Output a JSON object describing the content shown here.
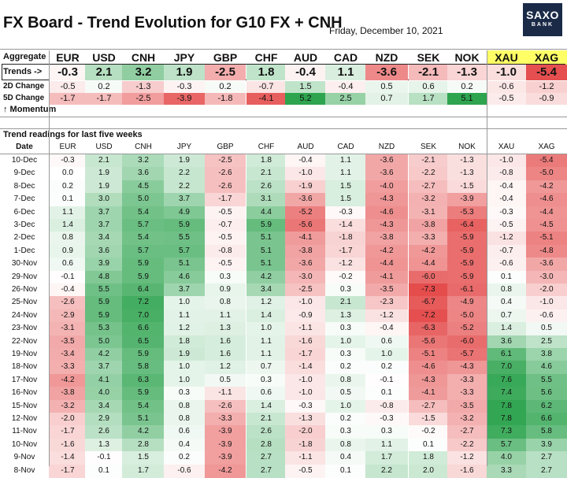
{
  "header": {
    "title": "FX Board - Trend Evolution for G10 FX + CNH",
    "date": "Friday, December 10, 2021",
    "logo_line1": "SAXO",
    "logo_line2": "BANK"
  },
  "labels": {
    "aggregate": "Aggregate",
    "trends": "Trends ->",
    "change2d": "2D Change",
    "change5d": "5D Change",
    "momentum": "↑ Momentum",
    "readings": "Trend readings for last five weeks",
    "date_col": "Date"
  },
  "colors": {
    "positive": "#2ea44f",
    "negative": "#e23b3b",
    "commodity_header": "#ffff66",
    "logo_bg": "#1a2a47"
  },
  "chart_data": {
    "type": "heatmap",
    "currencies": [
      "EUR",
      "USD",
      "CNH",
      "JPY",
      "GBP",
      "CHF",
      "AUD",
      "CAD",
      "NZD",
      "SEK",
      "NOK",
      "XAU",
      "XAG"
    ],
    "aggregate": {
      "trends": [
        "-0.3",
        "2.1",
        "3.2",
        "1.9",
        "-2.5",
        "1.8",
        "-0.4",
        "1.1",
        "-3.6",
        "-2.1",
        "-1.3",
        "-1.0",
        "-5.4"
      ],
      "change_2d": [
        "-0.5",
        "0.2",
        "-1.3",
        "-0.3",
        "0.2",
        "-0.7",
        "1.5",
        "-0.4",
        "0.5",
        "0.6",
        "0.2",
        "-0.6",
        "-1.2"
      ],
      "change_5d": [
        "-1.7",
        "-1.7",
        "-2.5",
        "-3.9",
        "-1.8",
        "-4.1",
        "5.2",
        "2.5",
        "0.7",
        "1.7",
        "5.1",
        "-0.5",
        "-0.9"
      ]
    },
    "dates": [
      "10-Dec",
      "9-Dec",
      "8-Dec",
      "7-Dec",
      "6-Dec",
      "3-Dec",
      "2-Dec",
      "1-Dec",
      "30-Nov",
      "29-Nov",
      "26-Nov",
      "25-Nov",
      "24-Nov",
      "23-Nov",
      "22-Nov",
      "19-Nov",
      "18-Nov",
      "17-Nov",
      "16-Nov",
      "15-Nov",
      "12-Nov",
      "11-Nov",
      "10-Nov",
      "9-Nov",
      "8-Nov"
    ],
    "readings": [
      [
        "-0.3",
        "2.1",
        "3.2",
        "1.9",
        "-2.5",
        "1.8",
        "-0.4",
        "1.1",
        "-3.6",
        "-2.1",
        "-1.3",
        "-1.0",
        "-5.4"
      ],
      [
        "0.0",
        "1.9",
        "3.6",
        "2.2",
        "-2.6",
        "2.1",
        "-1.0",
        "1.1",
        "-3.6",
        "-2.2",
        "-1.3",
        "-0.8",
        "-5.0"
      ],
      [
        "0.2",
        "1.9",
        "4.5",
        "2.2",
        "-2.6",
        "2.6",
        "-1.9",
        "1.5",
        "-4.0",
        "-2.7",
        "-1.5",
        "-0.4",
        "-4.2"
      ],
      [
        "0.1",
        "3.0",
        "5.0",
        "3.7",
        "-1.7",
        "3.1",
        "-3.6",
        "1.5",
        "-4.3",
        "-3.2",
        "-3.9",
        "-0.4",
        "-4.6"
      ],
      [
        "1.1",
        "3.7",
        "5.4",
        "4.9",
        "-0.5",
        "4.4",
        "-5.2",
        "-0.3",
        "-4.6",
        "-3.1",
        "-5.3",
        "-0.3",
        "-4.4"
      ],
      [
        "1.4",
        "3.7",
        "5.7",
        "5.9",
        "-0.7",
        "5.9",
        "-5.6",
        "-1.4",
        "-4.3",
        "-3.8",
        "-6.4",
        "-0.5",
        "-4.5"
      ],
      [
        "0.8",
        "3.4",
        "5.4",
        "5.5",
        "-0.5",
        "5.1",
        "-4.1",
        "-1.8",
        "-3.8",
        "-3.3",
        "-5.9",
        "-1.2",
        "-5.1"
      ],
      [
        "0.9",
        "3.6",
        "5.7",
        "5.7",
        "-0.8",
        "5.1",
        "-3.8",
        "-1.7",
        "-4.2",
        "-4.2",
        "-5.9",
        "-0.7",
        "-4.8"
      ],
      [
        "0.6",
        "3.9",
        "5.9",
        "5.1",
        "-0.5",
        "5.1",
        "-3.6",
        "-1.2",
        "-4.4",
        "-4.4",
        "-5.9",
        "-0.6",
        "-3.6"
      ],
      [
        "-0.1",
        "4.8",
        "5.9",
        "4.6",
        "0.3",
        "4.2",
        "-3.0",
        "-0.2",
        "-4.1",
        "-6.0",
        "-5.9",
        "0.1",
        "-3.0"
      ],
      [
        "-0.4",
        "5.5",
        "6.4",
        "3.7",
        "0.9",
        "3.4",
        "-2.5",
        "0.3",
        "-3.5",
        "-7.3",
        "-6.1",
        "0.8",
        "-2.0"
      ],
      [
        "-2.6",
        "5.9",
        "7.2",
        "1.0",
        "0.8",
        "1.2",
        "-1.0",
        "2.1",
        "-2.3",
        "-6.7",
        "-4.9",
        "0.4",
        "-1.0"
      ],
      [
        "-2.9",
        "5.9",
        "7.0",
        "1.1",
        "1.1",
        "1.4",
        "-0.9",
        "1.3",
        "-1.2",
        "-7.2",
        "-5.0",
        "0.7",
        "-0.6"
      ],
      [
        "-3.1",
        "5.3",
        "6.6",
        "1.2",
        "1.3",
        "1.0",
        "-1.1",
        "0.3",
        "-0.4",
        "-6.3",
        "-5.2",
        "1.4",
        "0.5"
      ],
      [
        "-3.5",
        "5.0",
        "6.5",
        "1.8",
        "1.6",
        "1.1",
        "-1.6",
        "1.0",
        "0.6",
        "-5.6",
        "-6.0",
        "3.6",
        "2.5"
      ],
      [
        "-3.4",
        "4.2",
        "5.9",
        "1.9",
        "1.6",
        "1.1",
        "-1.7",
        "0.3",
        "1.0",
        "-5.1",
        "-5.7",
        "6.1",
        "3.8"
      ],
      [
        "-3.3",
        "3.7",
        "5.8",
        "1.0",
        "1.2",
        "0.7",
        "-1.4",
        "0.2",
        "0.2",
        "-4.6",
        "-4.3",
        "7.0",
        "4.6"
      ],
      [
        "-4.2",
        "4.1",
        "6.3",
        "1.0",
        "0.5",
        "0.3",
        "-1.0",
        "0.8",
        "-0.1",
        "-4.3",
        "-3.3",
        "7.6",
        "5.5"
      ],
      [
        "-3.8",
        "4.0",
        "5.9",
        "0.3",
        "-1.1",
        "0.6",
        "-1.0",
        "0.5",
        "0.1",
        "-4.1",
        "-3.3",
        "7.4",
        "5.6"
      ],
      [
        "-3.2",
        "3.4",
        "5.4",
        "0.8",
        "-2.6",
        "1.4",
        "-0.3",
        "1.0",
        "-0.8",
        "-2.7",
        "-3.5",
        "7.8",
        "6.2"
      ],
      [
        "-2.0",
        "2.9",
        "5.1",
        "0.8",
        "-3.3",
        "2.1",
        "-1.3",
        "0.2",
        "-0.3",
        "-1.5",
        "-3.2",
        "7.8",
        "6.6"
      ],
      [
        "-1.7",
        "2.6",
        "4.2",
        "0.6",
        "-3.9",
        "2.6",
        "-2.0",
        "0.3",
        "0.3",
        "-0.2",
        "-2.7",
        "7.3",
        "5.8"
      ],
      [
        "-1.6",
        "1.3",
        "2.8",
        "0.4",
        "-3.9",
        "2.8",
        "-1.8",
        "0.8",
        "1.1",
        "0.1",
        "-2.2",
        "5.7",
        "3.9"
      ],
      [
        "-1.4",
        "-0.1",
        "1.5",
        "0.2",
        "-3.9",
        "2.7",
        "-1.1",
        "0.4",
        "1.7",
        "1.8",
        "-1.2",
        "4.0",
        "2.7"
      ],
      [
        "-1.7",
        "0.1",
        "1.7",
        "-0.6",
        "-4.2",
        "2.7",
        "-0.5",
        "0.1",
        "2.2",
        "2.0",
        "-1.6",
        "3.3",
        "2.7"
      ]
    ]
  }
}
